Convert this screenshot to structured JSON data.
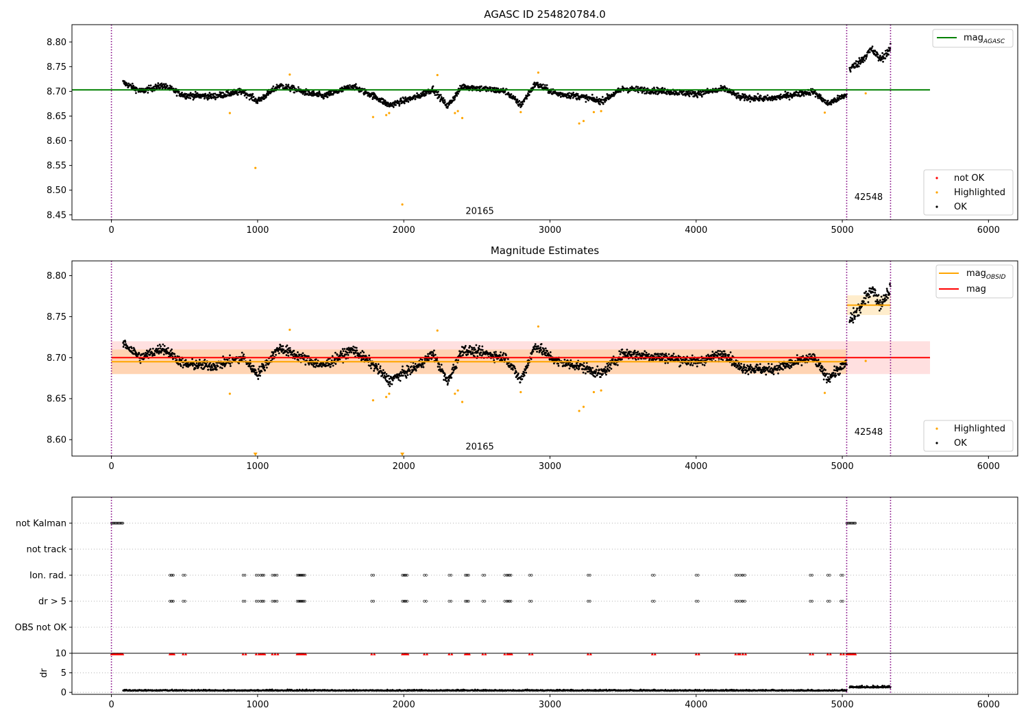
{
  "chart_data": [
    {
      "type": "scatter",
      "title": "AGASC ID 254820784.0",
      "xlim": [
        -270,
        6200
      ],
      "ylim": [
        8.44,
        8.835
      ],
      "xticks": [
        0,
        1000,
        2000,
        3000,
        4000,
        5000,
        6000
      ],
      "yticks": [
        8.45,
        8.5,
        8.55,
        8.6,
        8.65,
        8.7,
        8.75,
        8.8
      ],
      "obs_boundaries": [
        0,
        5030,
        5330
      ],
      "obs_labels": [
        {
          "text": "20165",
          "x": 2520,
          "y": 8.452
        },
        {
          "text": "42548",
          "x": 5180,
          "y": 8.48
        }
      ],
      "reference_lines": [
        {
          "name": "mag",
          "subscript": "AGASC",
          "color": "#008000",
          "y": 8.703,
          "x": [
            -270,
            5600
          ]
        }
      ],
      "series": [
        {
          "name": "OK",
          "color": "#000000",
          "segments": [
            {
              "x": [
                80,
                5030
              ],
              "center": 8.7,
              "noise": 0.006,
              "wave": [
                [
                  80,
                  8.718
                ],
                [
                  200,
                  8.7
                ],
                [
                  350,
                  8.712
                ],
                [
                  500,
                  8.692
                ],
                [
                  700,
                  8.69
                ],
                [
                  900,
                  8.7
                ],
                [
                  1000,
                  8.68
                ],
                [
                  1150,
                  8.712
                ],
                [
                  1300,
                  8.7
                ],
                [
                  1450,
                  8.69
                ],
                [
                  1650,
                  8.71
                ],
                [
                  1800,
                  8.69
                ],
                [
                  1900,
                  8.672
                ],
                [
                  2100,
                  8.69
                ],
                [
                  2200,
                  8.705
                ],
                [
                  2300,
                  8.67
                ],
                [
                  2400,
                  8.71
                ],
                [
                  2700,
                  8.7
                ],
                [
                  2800,
                  8.672
                ],
                [
                  2900,
                  8.715
                ],
                [
                  3050,
                  8.695
                ],
                [
                  3200,
                  8.69
                ],
                [
                  3350,
                  8.68
                ],
                [
                  3500,
                  8.705
                ],
                [
                  3800,
                  8.7
                ],
                [
                  4000,
                  8.695
                ],
                [
                  4200,
                  8.705
                ],
                [
                  4300,
                  8.688
                ],
                [
                  4500,
                  8.685
                ],
                [
                  4800,
                  8.7
                ],
                [
                  4900,
                  8.675
                ],
                [
                  5030,
                  8.693
                ]
              ]
            },
            {
              "x": [
                5050,
                5330
              ],
              "center": 8.765,
              "noise": 0.008,
              "wave": [
                [
                  5050,
                  8.745
                ],
                [
                  5120,
                  8.76
                ],
                [
                  5200,
                  8.785
                ],
                [
                  5260,
                  8.765
                ],
                [
                  5330,
                  8.785
                ]
              ]
            }
          ]
        },
        {
          "name": "Highlighted",
          "color": "#ffa500",
          "points": [
            [
              810,
              8.656
            ],
            [
              985,
              8.545
            ],
            [
              1220,
              8.734
            ],
            [
              1790,
              8.648
            ],
            [
              1880,
              8.652
            ],
            [
              1900,
              8.656
            ],
            [
              1990,
              8.471
            ],
            [
              2230,
              8.733
            ],
            [
              2350,
              8.656
            ],
            [
              2370,
              8.66
            ],
            [
              2400,
              8.646
            ],
            [
              2920,
              8.738
            ],
            [
              2800,
              8.658
            ],
            [
              3200,
              8.635
            ],
            [
              3230,
              8.64
            ],
            [
              3300,
              8.658
            ],
            [
              3350,
              8.66
            ],
            [
              4880,
              8.657
            ],
            [
              5160,
              8.696
            ]
          ]
        },
        {
          "name": "not OK",
          "color": "#ff0000",
          "points": []
        }
      ],
      "legends": [
        {
          "placement": "upper-right",
          "entries": [
            "mag_AGASC"
          ]
        },
        {
          "placement": "lower-right",
          "entries": [
            "not OK",
            "Highlighted",
            "OK"
          ]
        }
      ]
    },
    {
      "type": "scatter",
      "title": "Magnitude Estimates",
      "xlim": [
        -270,
        6200
      ],
      "ylim": [
        8.58,
        8.818
      ],
      "xticks": [
        0,
        1000,
        2000,
        3000,
        4000,
        5000,
        6000
      ],
      "yticks": [
        8.6,
        8.65,
        8.7,
        8.75,
        8.8
      ],
      "obs_boundaries": [
        0,
        5030,
        5330
      ],
      "obs_labels": [
        {
          "text": "20165",
          "x": 2520,
          "y": 8.588
        },
        {
          "text": "42548",
          "x": 5180,
          "y": 8.606
        }
      ],
      "reference_lines": [
        {
          "name": "mag",
          "subscript": "OBSID",
          "color": "#ffa500",
          "segments": [
            {
              "x": [
                0,
                5030
              ],
              "y": 8.695
            },
            {
              "x": [
                5030,
                5330
              ],
              "y": 8.764
            }
          ]
        },
        {
          "name": "mag",
          "subscript": "",
          "color": "#ff0000",
          "y": 8.7,
          "x": [
            0,
            5600
          ]
        }
      ],
      "bands": [
        {
          "color": "#ff0000",
          "opacity": 0.12,
          "x": [
            0,
            5600
          ],
          "y": [
            8.68,
            8.72
          ]
        },
        {
          "color": "#ffa500",
          "opacity": 0.2,
          "x": [
            0,
            5030
          ],
          "y": [
            8.68,
            8.71
          ]
        },
        {
          "color": "#ffa500",
          "opacity": 0.2,
          "x": [
            5030,
            5330
          ],
          "y": [
            8.752,
            8.776
          ]
        }
      ],
      "series": [
        {
          "name": "OK",
          "color": "#000000",
          "segments": [
            {
              "x": [
                80,
                5030
              ],
              "center": 8.7,
              "noise": 0.006,
              "wave": [
                [
                  80,
                  8.718
                ],
                [
                  200,
                  8.7
                ],
                [
                  350,
                  8.712
                ],
                [
                  500,
                  8.692
                ],
                [
                  700,
                  8.69
                ],
                [
                  900,
                  8.7
                ],
                [
                  1000,
                  8.68
                ],
                [
                  1150,
                  8.712
                ],
                [
                  1300,
                  8.7
                ],
                [
                  1450,
                  8.69
                ],
                [
                  1650,
                  8.71
                ],
                [
                  1800,
                  8.69
                ],
                [
                  1900,
                  8.672
                ],
                [
                  2100,
                  8.69
                ],
                [
                  2200,
                  8.705
                ],
                [
                  2300,
                  8.67
                ],
                [
                  2400,
                  8.71
                ],
                [
                  2700,
                  8.7
                ],
                [
                  2800,
                  8.672
                ],
                [
                  2900,
                  8.715
                ],
                [
                  3050,
                  8.695
                ],
                [
                  3200,
                  8.69
                ],
                [
                  3350,
                  8.68
                ],
                [
                  3500,
                  8.705
                ],
                [
                  3800,
                  8.7
                ],
                [
                  4000,
                  8.695
                ],
                [
                  4200,
                  8.705
                ],
                [
                  4300,
                  8.688
                ],
                [
                  4500,
                  8.685
                ],
                [
                  4800,
                  8.7
                ],
                [
                  4900,
                  8.675
                ],
                [
                  5030,
                  8.693
                ]
              ]
            },
            {
              "x": [
                5050,
                5330
              ],
              "center": 8.765,
              "noise": 0.008,
              "wave": [
                [
                  5050,
                  8.745
                ],
                [
                  5120,
                  8.76
                ],
                [
                  5200,
                  8.785
                ],
                [
                  5260,
                  8.765
                ],
                [
                  5330,
                  8.785
                ]
              ]
            }
          ]
        },
        {
          "name": "Highlighted",
          "color": "#ffa500",
          "points": [
            [
              810,
              8.656
            ],
            [
              1220,
              8.734
            ],
            [
              1790,
              8.648
            ],
            [
              1880,
              8.652
            ],
            [
              1900,
              8.656
            ],
            [
              2230,
              8.733
            ],
            [
              2350,
              8.656
            ],
            [
              2370,
              8.66
            ],
            [
              2400,
              8.646
            ],
            [
              2920,
              8.738
            ],
            [
              2800,
              8.658
            ],
            [
              3200,
              8.635
            ],
            [
              3230,
              8.64
            ],
            [
              3300,
              8.658
            ],
            [
              3350,
              8.66
            ],
            [
              4880,
              8.657
            ],
            [
              5160,
              8.696
            ]
          ],
          "clipped_low": [
            985,
            1990
          ]
        }
      ],
      "legends": [
        {
          "placement": "upper-right",
          "entries": [
            "mag_OBSID",
            "mag"
          ]
        },
        {
          "placement": "lower-right",
          "entries": [
            "Highlighted",
            "OK"
          ]
        }
      ]
    },
    {
      "type": "scatter",
      "title": "",
      "xlim": [
        -270,
        6200
      ],
      "categories": [
        "not Kalman",
        "not track",
        "Ion. rad.",
        "dr > 5",
        "OBS not OK"
      ],
      "flags": {
        "not Kalman": [
          [
            0,
            80
          ],
          [
            5030,
            5090
          ]
        ],
        "not track": [],
        "Ion. rad.": [
          400,
          410,
          490,
          900,
          990,
          1020,
          1030,
          1100,
          1120,
          1270,
          1280,
          1290,
          1300,
          1310,
          1780,
          1990,
          2000,
          2010,
          2140,
          2310,
          2420,
          2430,
          2540,
          2690,
          2710,
          2720,
          2860,
          3260,
          3700,
          4000,
          4270,
          4300,
          4320,
          4780,
          4900,
          4990
        ],
        "dr > 5": [
          400,
          410,
          490,
          900,
          990,
          1020,
          1030,
          1100,
          1120,
          1270,
          1280,
          1290,
          1300,
          1310,
          1780,
          1990,
          2000,
          2010,
          2140,
          2310,
          2420,
          2430,
          2540,
          2690,
          2710,
          2720,
          2860,
          3260,
          3700,
          4000,
          4270,
          4300,
          4320,
          4780,
          4900,
          4990
        ],
        "OBS not OK": []
      },
      "obs_boundaries": [
        0,
        5030,
        5330
      ],
      "dr": {
        "ylabel": "dr",
        "ylim": [
          -0.5,
          10
        ],
        "yticks": [
          0,
          5,
          10
        ],
        "clipped_at_10": [
          [
            0,
            80
          ],
          [
            400,
            410,
            490,
            900,
            990,
            1020,
            1030,
            1100,
            1120,
            1270,
            1280,
            1290,
            1300,
            1310,
            1780,
            1990,
            2000,
            2010,
            2140,
            2310,
            2420,
            2430,
            2540,
            2690,
            2710,
            2720,
            2860,
            3260,
            3700,
            4000,
            4270,
            4300,
            4320,
            4780,
            4900,
            4990
          ],
          [
            5030,
            5090
          ]
        ],
        "segments": [
          {
            "x": [
              80,
              5030
            ],
            "center": 0.4,
            "noise": 0.25
          },
          {
            "x": [
              5050,
              5330
            ],
            "center": 1.2,
            "noise": 0.5
          }
        ]
      },
      "xticks": [
        0,
        1000,
        2000,
        3000,
        4000,
        5000,
        6000
      ]
    }
  ]
}
